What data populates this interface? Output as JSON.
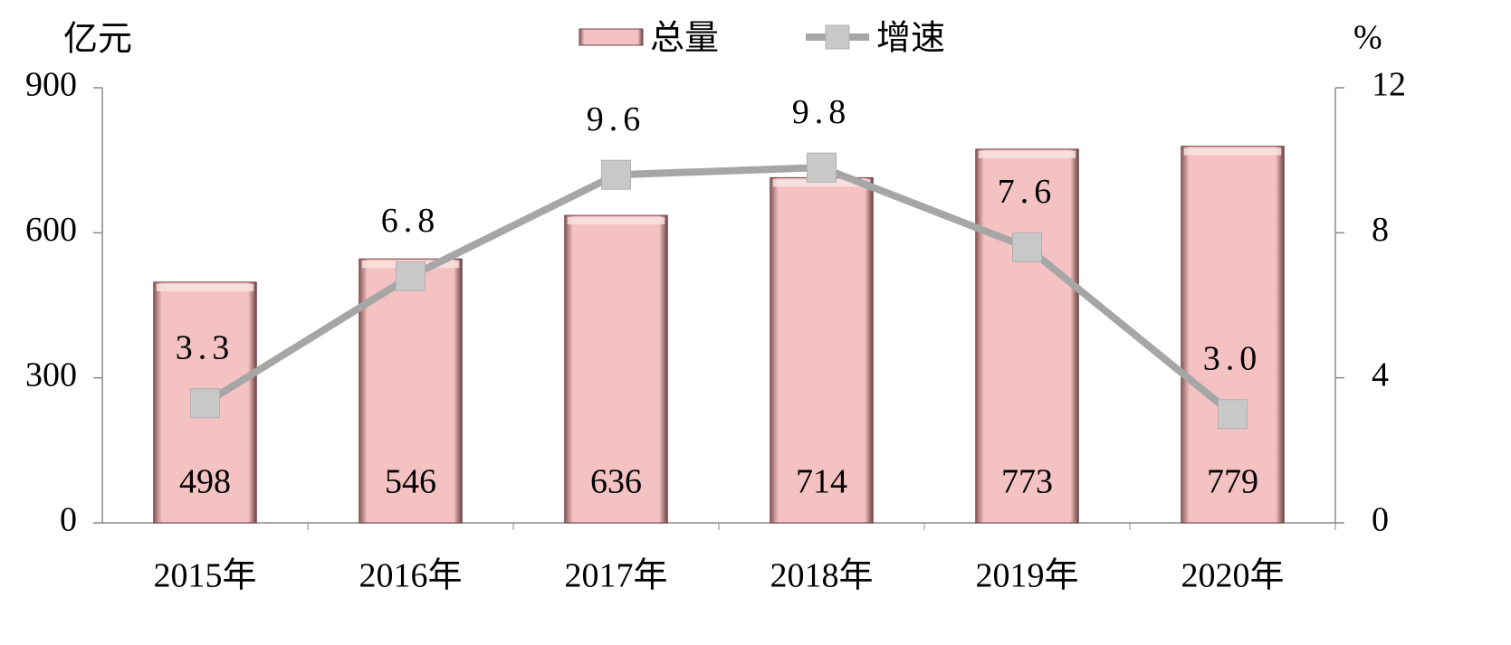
{
  "chart_data": {
    "type": "bar",
    "y_label": "亿元",
    "y2_label": "%",
    "categories": [
      "2015年",
      "2016年",
      "2017年",
      "2018年",
      "2019年",
      "2020年"
    ],
    "series": [
      {
        "name": "总量",
        "type": "bar",
        "color": "#f4c2c2",
        "values": [
          498,
          546,
          636,
          714,
          773,
          779
        ]
      },
      {
        "name": "增速",
        "type": "line",
        "axis": "y2",
        "color": "#a6a6a6",
        "values": [
          3.3,
          6.8,
          9.6,
          9.8,
          7.6,
          3.0
        ],
        "value_labels": [
          "3.3",
          "6.8",
          "9.6",
          "9.8",
          "7.6",
          "3.0"
        ]
      }
    ],
    "ylim": [
      0,
      900
    ],
    "yticks": [
      0,
      300,
      600,
      900
    ],
    "y2lim": [
      0,
      12
    ],
    "y2ticks": [
      0,
      4,
      8,
      12
    ],
    "grid": false
  }
}
